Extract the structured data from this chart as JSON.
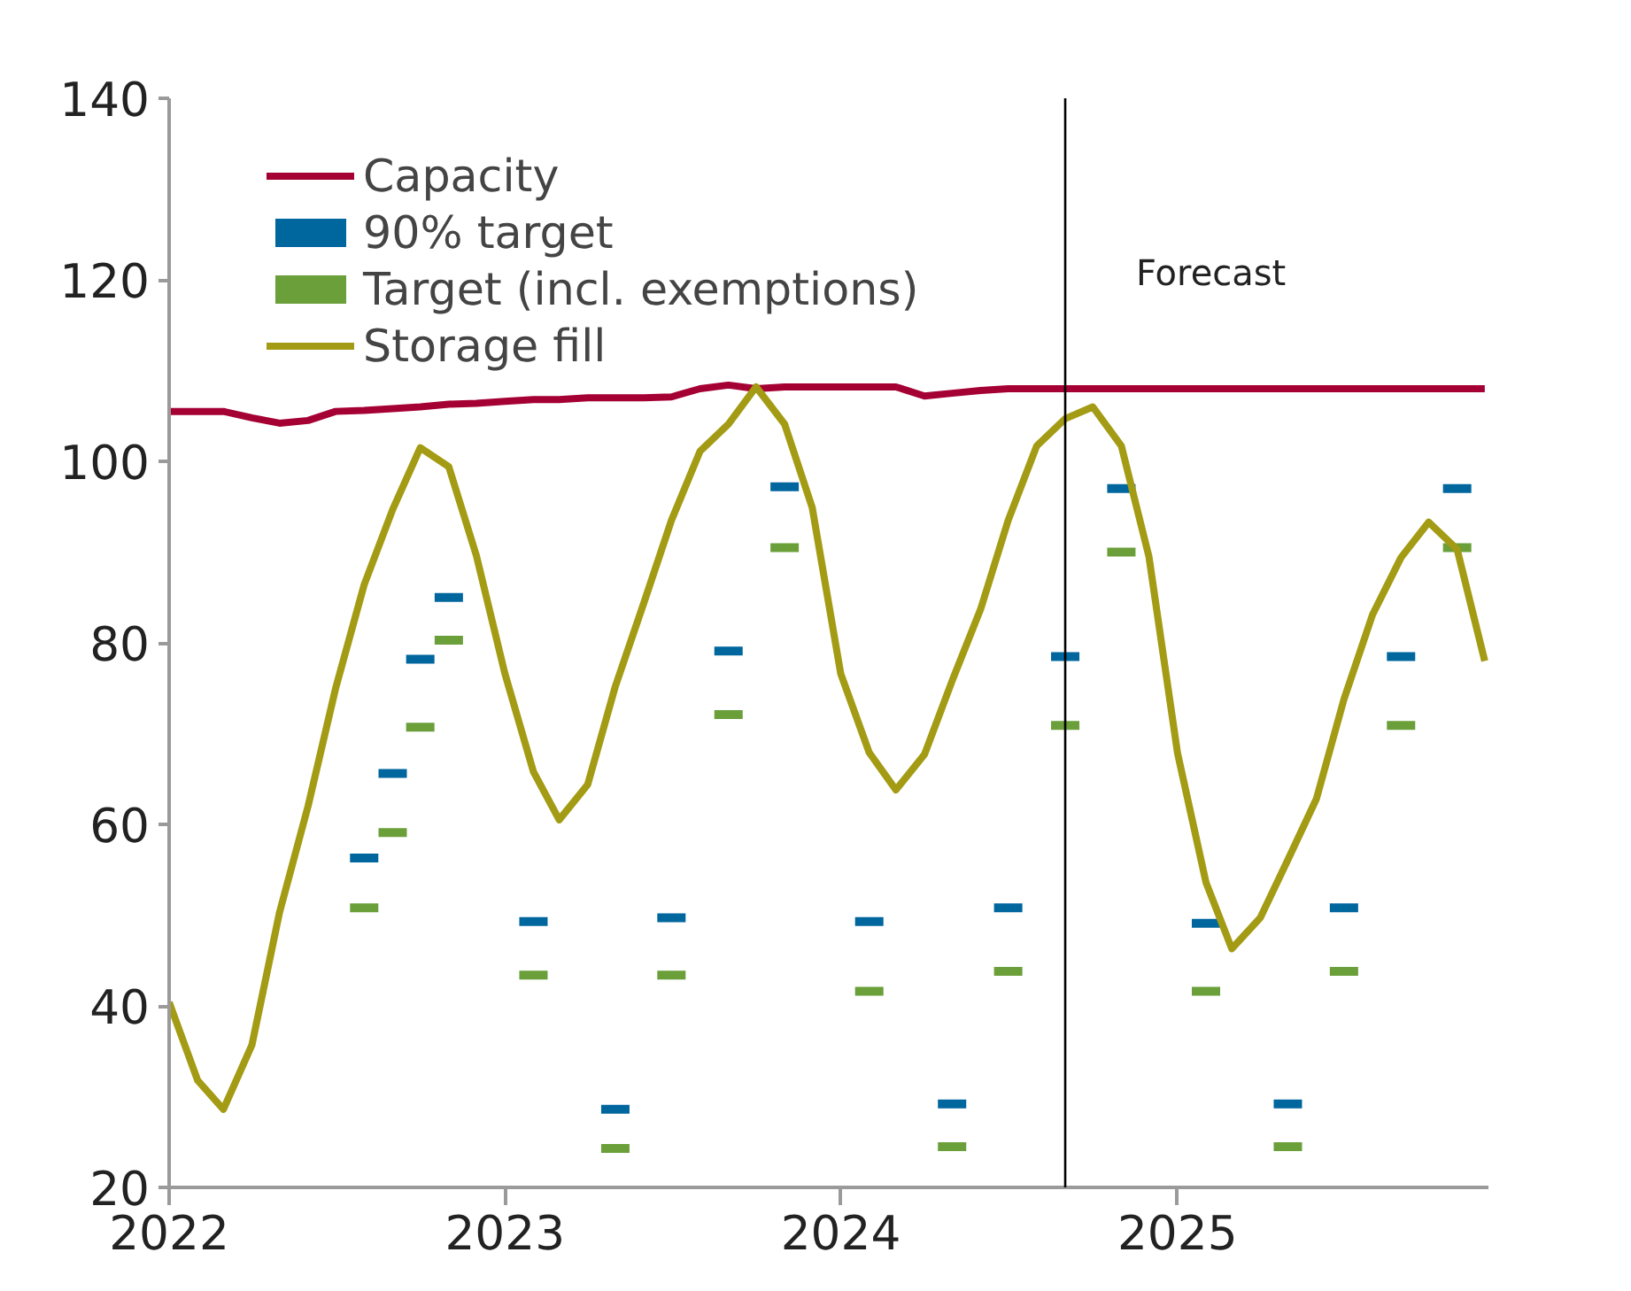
{
  "chart_data": {
    "type": "line",
    "x": [
      "2022-01",
      "2022-02",
      "2022-03",
      "2022-04",
      "2022-05",
      "2022-06",
      "2022-07",
      "2022-08",
      "2022-09",
      "2022-10",
      "2022-11",
      "2022-12",
      "2023-01",
      "2023-02",
      "2023-03",
      "2023-04",
      "2023-05",
      "2023-06",
      "2023-07",
      "2023-08",
      "2023-09",
      "2023-10",
      "2023-11",
      "2023-12",
      "2024-01",
      "2024-02",
      "2024-03",
      "2024-04",
      "2024-05",
      "2024-06",
      "2024-07",
      "2024-08",
      "2024-09",
      "2024-10",
      "2024-11",
      "2024-12",
      "2025-01",
      "2025-02",
      "2025-03",
      "2025-04",
      "2025-05",
      "2025-06",
      "2025-07",
      "2025-08",
      "2025-09",
      "2025-10",
      "2025-11",
      "2025-12"
    ],
    "series": [
      {
        "name": "Capacity",
        "color": "#a50034",
        "values": [
          105.5,
          105.5,
          105.5,
          104.8,
          104.2,
          104.5,
          105.5,
          105.6,
          105.8,
          106,
          106.3,
          106.4,
          106.6,
          106.8,
          106.8,
          107,
          107,
          107,
          107.1,
          108,
          108.4,
          108,
          108.2,
          108.2,
          108.2,
          108.2,
          108.2,
          107.2,
          107.5,
          107.8,
          108,
          108,
          108,
          108,
          108,
          108,
          108,
          108,
          108,
          108,
          108,
          108,
          108,
          108,
          108,
          108,
          108,
          108
        ]
      },
      {
        "name": "90% target",
        "color": "#00669e",
        "type": "scatter",
        "x": [
          "2022-08",
          "2022-09",
          "2022-10",
          "2022-11",
          "2023-02",
          "2023-05",
          "2023-07",
          "2023-09",
          "2023-11",
          "2024-02",
          "2024-05",
          "2024-07",
          "2024-09",
          "2024-11",
          "2025-02",
          "2025-05",
          "2025-07",
          "2025-09",
          "2025-11"
        ],
        "values": [
          56.3,
          65.6,
          78.2,
          85,
          49.3,
          28.6,
          49.7,
          79.1,
          97.2,
          49.3,
          29.2,
          50.8,
          78.5,
          97,
          49.1,
          29.2,
          50.8,
          78.5,
          97
        ]
      },
      {
        "name": "Target (incl. exemptions)",
        "color": "#6a9f3a",
        "type": "scatter",
        "x": [
          "2022-08",
          "2022-09",
          "2022-10",
          "2022-11",
          "2023-02",
          "2023-05",
          "2023-07",
          "2023-09",
          "2023-11",
          "2024-02",
          "2024-05",
          "2024-07",
          "2024-09",
          "2024-11",
          "2025-02",
          "2025-05",
          "2025-07",
          "2025-09",
          "2025-11"
        ],
        "values": [
          50.8,
          59.1,
          70.7,
          80.3,
          43.4,
          24.3,
          43.4,
          72.1,
          90.5,
          41.6,
          24.5,
          43.8,
          70.9,
          90,
          41.6,
          24.5,
          43.8,
          70.9,
          90.5
        ]
      },
      {
        "name": "Storage fill",
        "color": "#a39b14",
        "values": [
          40.4,
          31.8,
          28.6,
          35.7,
          50.3,
          62,
          75,
          86.4,
          94.7,
          101.5,
          99.4,
          89.6,
          76.6,
          65.8,
          60.5,
          64.4,
          75.2,
          84.4,
          93.5,
          101.1,
          104.1,
          108.2,
          104.1,
          94.9,
          76.6,
          67.9,
          63.8,
          67.7,
          75.8,
          83.7,
          93.5,
          101.7,
          104.7,
          106,
          101.7,
          89.5,
          67.9,
          53.6,
          46.3,
          49.7,
          56.1,
          62.8,
          73.8,
          83.1,
          89.4,
          93.3,
          90.3,
          78
        ]
      }
    ],
    "xlim": [
      "2022-01",
      "2025-12-05"
    ],
    "xticks": [
      "2022",
      "2023",
      "2024",
      "2025"
    ],
    "ylim": [
      20,
      140
    ],
    "yticks": [
      20,
      40,
      60,
      80,
      100,
      120,
      140
    ],
    "ref_lines": [
      {
        "axis": "x",
        "value": "2024-09",
        "label": "Forecast",
        "color": "#000000"
      }
    ],
    "grid": false,
    "legend": "top left"
  }
}
